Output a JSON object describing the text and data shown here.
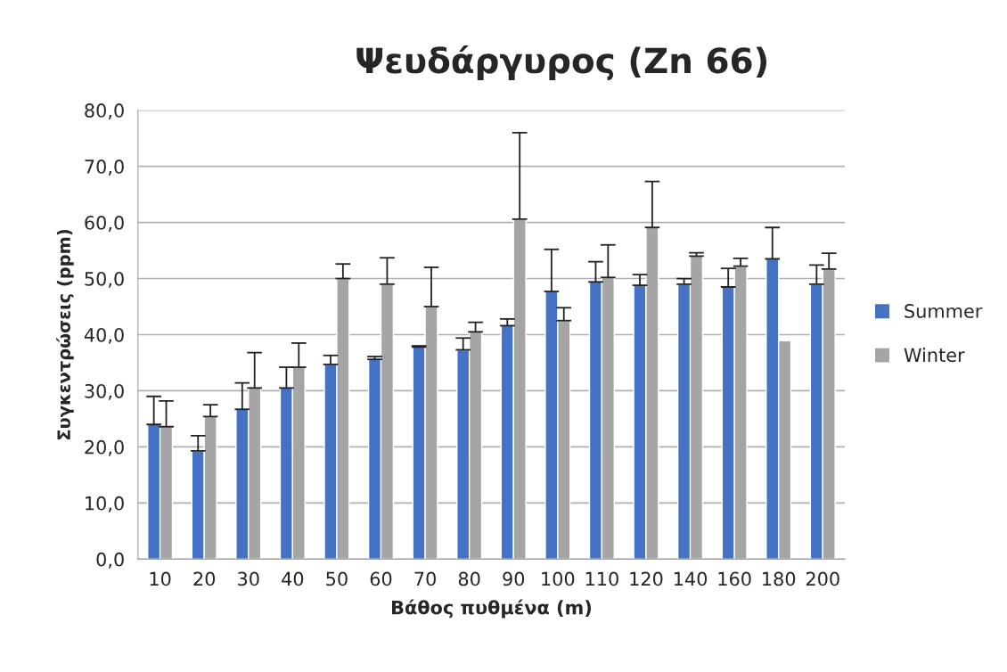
{
  "chart_data": {
    "type": "bar",
    "title": "Ψευδάργυρος (Zn 66)",
    "xlabel": "Βάθος πυθμένα (m)",
    "ylabel": "Συγκεντρώσεις (ppm)",
    "categories": [
      "10",
      "20",
      "30",
      "40",
      "50",
      "60",
      "70",
      "80",
      "90",
      "100",
      "110",
      "120",
      "140",
      "160",
      "180",
      "200"
    ],
    "series": [
      {
        "name": "Summer",
        "color": "#4472c4",
        "values": [
          24.0,
          19.3,
          26.7,
          30.5,
          34.7,
          35.6,
          37.8,
          37.3,
          41.6,
          47.7,
          49.4,
          48.8,
          49.0,
          48.5,
          53.5,
          49.0
        ],
        "errors": [
          [
            24.0,
            29.0
          ],
          [
            19.3,
            22.0
          ],
          [
            26.7,
            31.4
          ],
          [
            30.5,
            34.2
          ],
          [
            34.7,
            36.3
          ],
          [
            35.6,
            36.1
          ],
          [
            37.8,
            38.0
          ],
          [
            37.3,
            39.4
          ],
          [
            41.6,
            42.8
          ],
          [
            47.7,
            55.2
          ],
          [
            49.4,
            53.0
          ],
          [
            48.8,
            50.7
          ],
          [
            49.0,
            50.0
          ],
          [
            48.5,
            51.8
          ],
          [
            53.5,
            59.1
          ],
          [
            49.0,
            52.4
          ]
        ]
      },
      {
        "name": "Winter",
        "color": "#a5a5a5",
        "values": [
          23.6,
          25.4,
          30.5,
          34.2,
          50.0,
          49.0,
          45.0,
          40.5,
          60.6,
          42.5,
          50.2,
          59.1,
          54.0,
          52.2,
          38.9,
          51.7
        ],
        "errors": [
          [
            23.6,
            28.2
          ],
          [
            25.4,
            27.5
          ],
          [
            30.5,
            36.8
          ],
          [
            34.2,
            38.5
          ],
          [
            50.0,
            52.6
          ],
          [
            49.0,
            53.7
          ],
          [
            45.0,
            52.0
          ],
          [
            40.5,
            42.2
          ],
          [
            60.6,
            76.0
          ],
          [
            42.5,
            44.8
          ],
          [
            50.2,
            56.0
          ],
          [
            59.1,
            67.3
          ],
          [
            54.0,
            54.6
          ],
          [
            52.2,
            53.6
          ],
          null,
          [
            51.7,
            54.5
          ]
        ]
      }
    ],
    "ylim": [
      0,
      80
    ],
    "yticks": [
      {
        "value": 0,
        "label": "0,0"
      },
      {
        "value": 10,
        "label": "10,0"
      },
      {
        "value": 20,
        "label": "20,0"
      },
      {
        "value": 30,
        "label": "30,0"
      },
      {
        "value": 40,
        "label": "40,0"
      },
      {
        "value": 50,
        "label": "50,0"
      },
      {
        "value": 60,
        "label": "60,0"
      },
      {
        "value": 70,
        "label": "70,0"
      },
      {
        "value": 80,
        "label": "80,0"
      }
    ],
    "grid": "y",
    "legend": "right"
  }
}
